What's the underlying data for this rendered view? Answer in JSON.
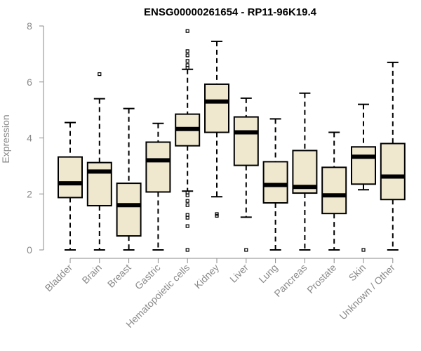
{
  "chart_data": {
    "type": "boxplot",
    "title": "ENSG00000261654 - RP11-96K19.4",
    "xlabel": "",
    "ylabel": "Expression",
    "ylim": [
      0,
      8
    ],
    "yticks": [
      0,
      2,
      4,
      6,
      8
    ],
    "box_fill": "#efe8cf",
    "categories": [
      "Bladder",
      "Brain",
      "Breast",
      "Gastric",
      "Hematopoietic cells",
      "Kidney",
      "Liver",
      "Lung",
      "Pancreas",
      "Prostate",
      "Skin",
      "Unknown / Other"
    ],
    "boxes": [
      {
        "name": "Bladder",
        "min": 0,
        "q1": 1.87,
        "median": 2.38,
        "q3": 3.32,
        "max": 4.55,
        "outliers": []
      },
      {
        "name": "Brain",
        "min": 0,
        "q1": 1.58,
        "median": 2.8,
        "q3": 3.12,
        "max": 5.4,
        "outliers": [
          6.28
        ]
      },
      {
        "name": "Breast",
        "min": 0,
        "q1": 0.5,
        "median": 1.6,
        "q3": 2.38,
        "max": 5.05,
        "outliers": []
      },
      {
        "name": "Gastric",
        "min": 0,
        "q1": 2.07,
        "median": 3.2,
        "q3": 3.85,
        "max": 4.52,
        "outliers": []
      },
      {
        "name": "Hematopoietic cells",
        "min": 2.1,
        "q1": 3.72,
        "median": 4.32,
        "q3": 4.85,
        "max": 6.45,
        "outliers": [
          7.82,
          7.1,
          6.95,
          6.75,
          6.6,
          6.5,
          2.05,
          1.95,
          1.75,
          1.6,
          1.25,
          1.15,
          0.85,
          0
        ]
      },
      {
        "name": "Kidney",
        "min": 1.9,
        "q1": 4.2,
        "median": 5.3,
        "q3": 5.92,
        "max": 7.45,
        "outliers": [
          1.28,
          1.22
        ]
      },
      {
        "name": "Liver",
        "min": 1.17,
        "q1": 3.02,
        "median": 4.2,
        "q3": 4.75,
        "max": 5.42,
        "outliers": [
          0
        ]
      },
      {
        "name": "Lung",
        "min": 0,
        "q1": 1.68,
        "median": 2.32,
        "q3": 3.15,
        "max": 4.68,
        "outliers": []
      },
      {
        "name": "Pancreas",
        "min": 0,
        "q1": 2.03,
        "median": 2.25,
        "q3": 3.55,
        "max": 5.6,
        "outliers": []
      },
      {
        "name": "Prostate",
        "min": 0,
        "q1": 1.3,
        "median": 1.95,
        "q3": 2.95,
        "max": 4.2,
        "outliers": []
      },
      {
        "name": "Skin",
        "min": 2.15,
        "q1": 2.35,
        "median": 3.33,
        "q3": 3.68,
        "max": 5.2,
        "outliers": [
          0
        ]
      },
      {
        "name": "Unknown / Other",
        "min": 0,
        "q1": 1.8,
        "median": 2.62,
        "q3": 3.8,
        "max": 6.7,
        "outliers": []
      }
    ]
  }
}
